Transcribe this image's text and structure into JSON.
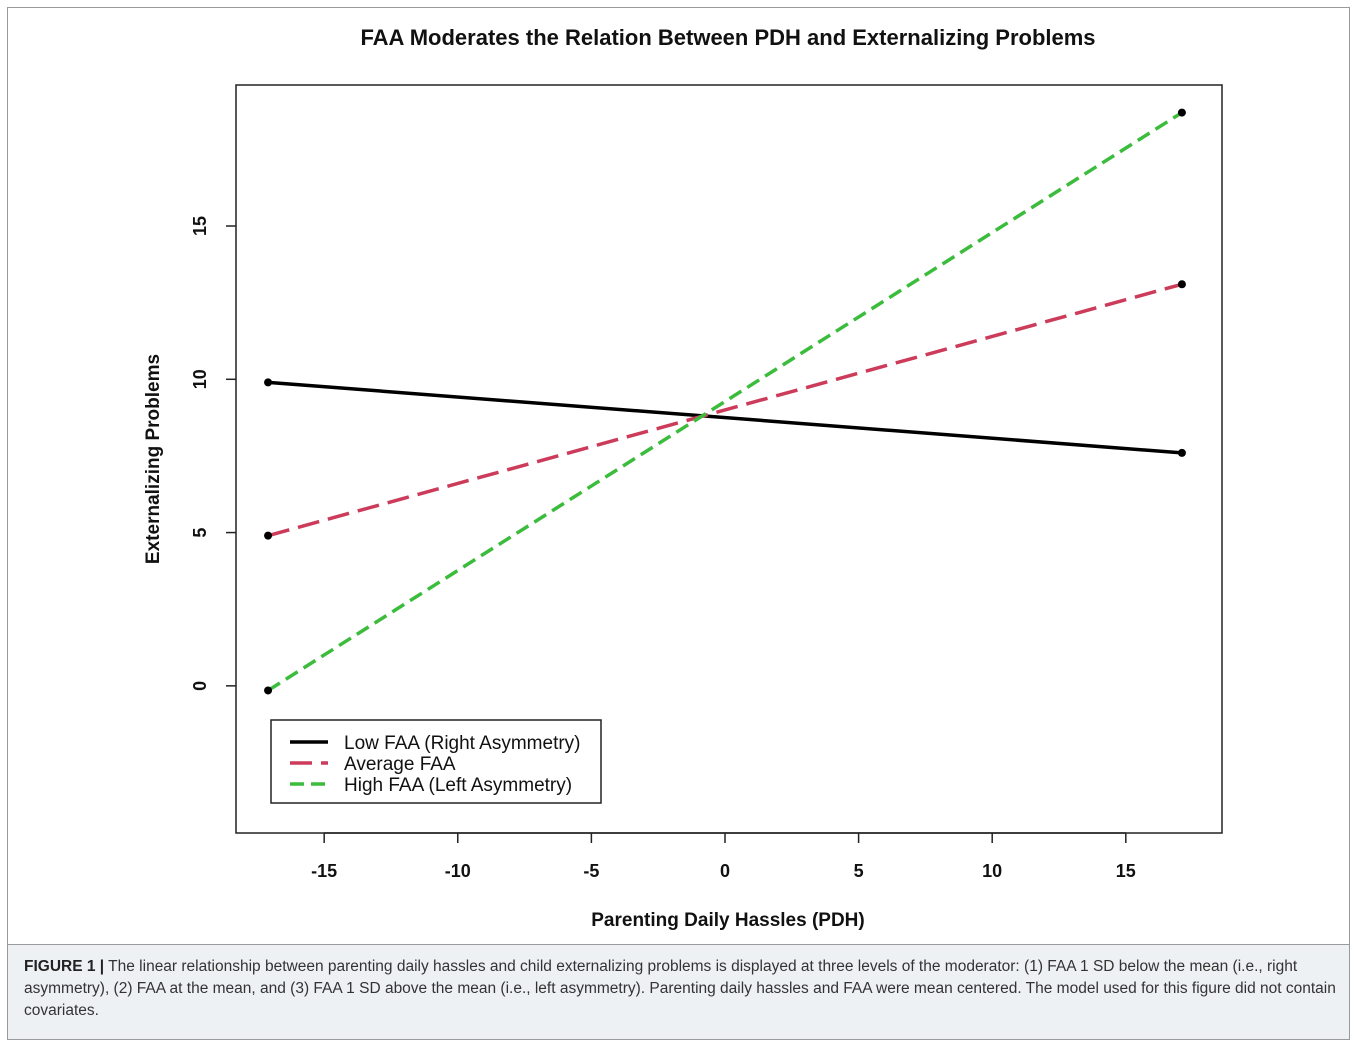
{
  "chart_data": {
    "type": "line",
    "title": "FAA Moderates the Relation Between PDH and Externalizing Problems",
    "xlabel": "Parenting Daily Hassles (PDH)",
    "ylabel": "Externalizing Problems",
    "xlim": [
      -18.3,
      18.6
    ],
    "ylim": [
      -4.8,
      19.6
    ],
    "xticks": [
      -15,
      -10,
      -5,
      0,
      5,
      10,
      15
    ],
    "yticks": [
      0,
      5,
      10,
      15
    ],
    "grid": false,
    "legend": "bottom-left",
    "series": [
      {
        "name": "Low FAA (Right Asymmetry)",
        "color": "#000000",
        "dash": "solid",
        "x": [
          -17.1,
          17.1
        ],
        "y": [
          9.9,
          7.6
        ]
      },
      {
        "name": "Average FAA",
        "color": "#cc3c5a",
        "dash": "long-dash",
        "x": [
          -17.1,
          17.1
        ],
        "y": [
          4.9,
          13.1
        ]
      },
      {
        "name": "High FAA (Left Asymmetry)",
        "color": "#3cbc3c",
        "dash": "short-dash",
        "x": [
          -17.1,
          17.1
        ],
        "y": [
          -0.15,
          18.7
        ]
      }
    ]
  },
  "caption": {
    "label": "FIGURE 1 |",
    "text": " The linear relationship between parenting daily hassles and child externalizing problems is displayed at three levels of the moderator: (1) FAA 1 SD below the mean (i.e., right asymmetry), (2) FAA at the mean, and (3) FAA 1 SD above the mean (i.e., left asymmetry). Parenting daily hassles and FAA were mean centered. The model used for this figure did not contain covariates."
  }
}
